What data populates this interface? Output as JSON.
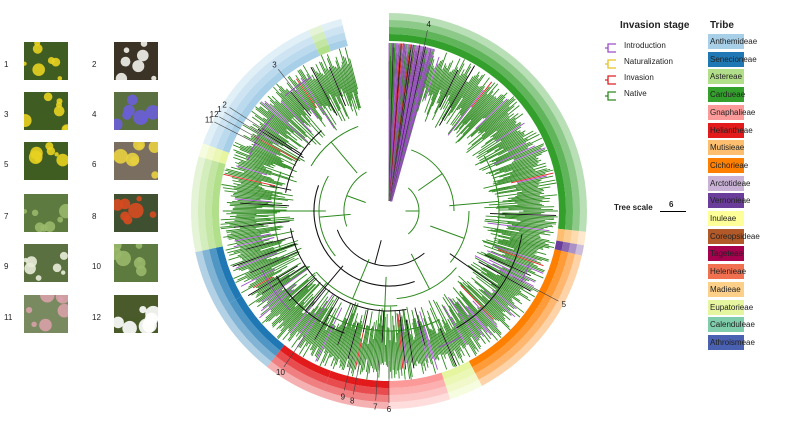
{
  "invasion_legend": {
    "title": "Invasion stage",
    "items": [
      {
        "label": "Introduction",
        "color": "#9b4fc4"
      },
      {
        "label": "Naturalization",
        "color": "#e8c020"
      },
      {
        "label": "Invasion",
        "color": "#e02020"
      },
      {
        "label": "Native",
        "color": "#2d8a1e"
      }
    ]
  },
  "tribe_legend": {
    "title": "Tribe",
    "items": [
      {
        "label": "Anthemideae",
        "color": "#a8cfe8"
      },
      {
        "label": "Senecioneae",
        "color": "#1f78b4"
      },
      {
        "label": "Astereae",
        "color": "#b2df8a"
      },
      {
        "label": "Cardueae",
        "color": "#33a02c"
      },
      {
        "label": "Gnaphalieae",
        "color": "#fb9a99"
      },
      {
        "label": "Heliantheae",
        "color": "#e31a1c"
      },
      {
        "label": "Mutisieae",
        "color": "#fdbf6f"
      },
      {
        "label": "Cichorieae",
        "color": "#ff7f00"
      },
      {
        "label": "Arctotideae",
        "color": "#cab2d6"
      },
      {
        "label": "Vernonieae",
        "color": "#6a3d9a"
      },
      {
        "label": "Inuleae",
        "color": "#ffff99"
      },
      {
        "label": "Coreopsideae",
        "color": "#b15928"
      },
      {
        "label": "Tageteae",
        "color": "#a6004f"
      },
      {
        "label": "Helenieae",
        "color": "#f0704f"
      },
      {
        "label": "Madieae",
        "color": "#fdd08a"
      },
      {
        "label": "Eupatorieae",
        "color": "#e6f5a0"
      },
      {
        "label": "Calenduleae",
        "color": "#7fcdaa"
      },
      {
        "label": "Athroismeae",
        "color": "#4a60b0"
      }
    ]
  },
  "tree_scale": {
    "label": "Tree scale",
    "value": "6"
  },
  "photos": [
    {
      "num": "1",
      "desc_icon": "yellow-flower-icon"
    },
    {
      "num": "2",
      "desc_icon": "white-flower-icon"
    },
    {
      "num": "3",
      "desc_icon": "yellow-flower-icon"
    },
    {
      "num": "4",
      "desc_icon": "blue-flower-icon"
    },
    {
      "num": "5",
      "desc_icon": "yellow-flower-icon"
    },
    {
      "num": "6",
      "desc_icon": "small-flower-icon"
    },
    {
      "num": "7",
      "desc_icon": "green-plant-icon"
    },
    {
      "num": "8",
      "desc_icon": "red-flower-icon"
    },
    {
      "num": "9",
      "desc_icon": "white-cluster-icon"
    },
    {
      "num": "10",
      "desc_icon": "green-plant-icon"
    },
    {
      "num": "11",
      "desc_icon": "pink-flower-icon"
    },
    {
      "num": "12",
      "desc_icon": "daisy-icon"
    }
  ],
  "tree_labels": [
    "4",
    "3",
    "2",
    "1",
    "12",
    "11",
    "5",
    "10",
    "9",
    "8",
    "7",
    "6"
  ]
}
